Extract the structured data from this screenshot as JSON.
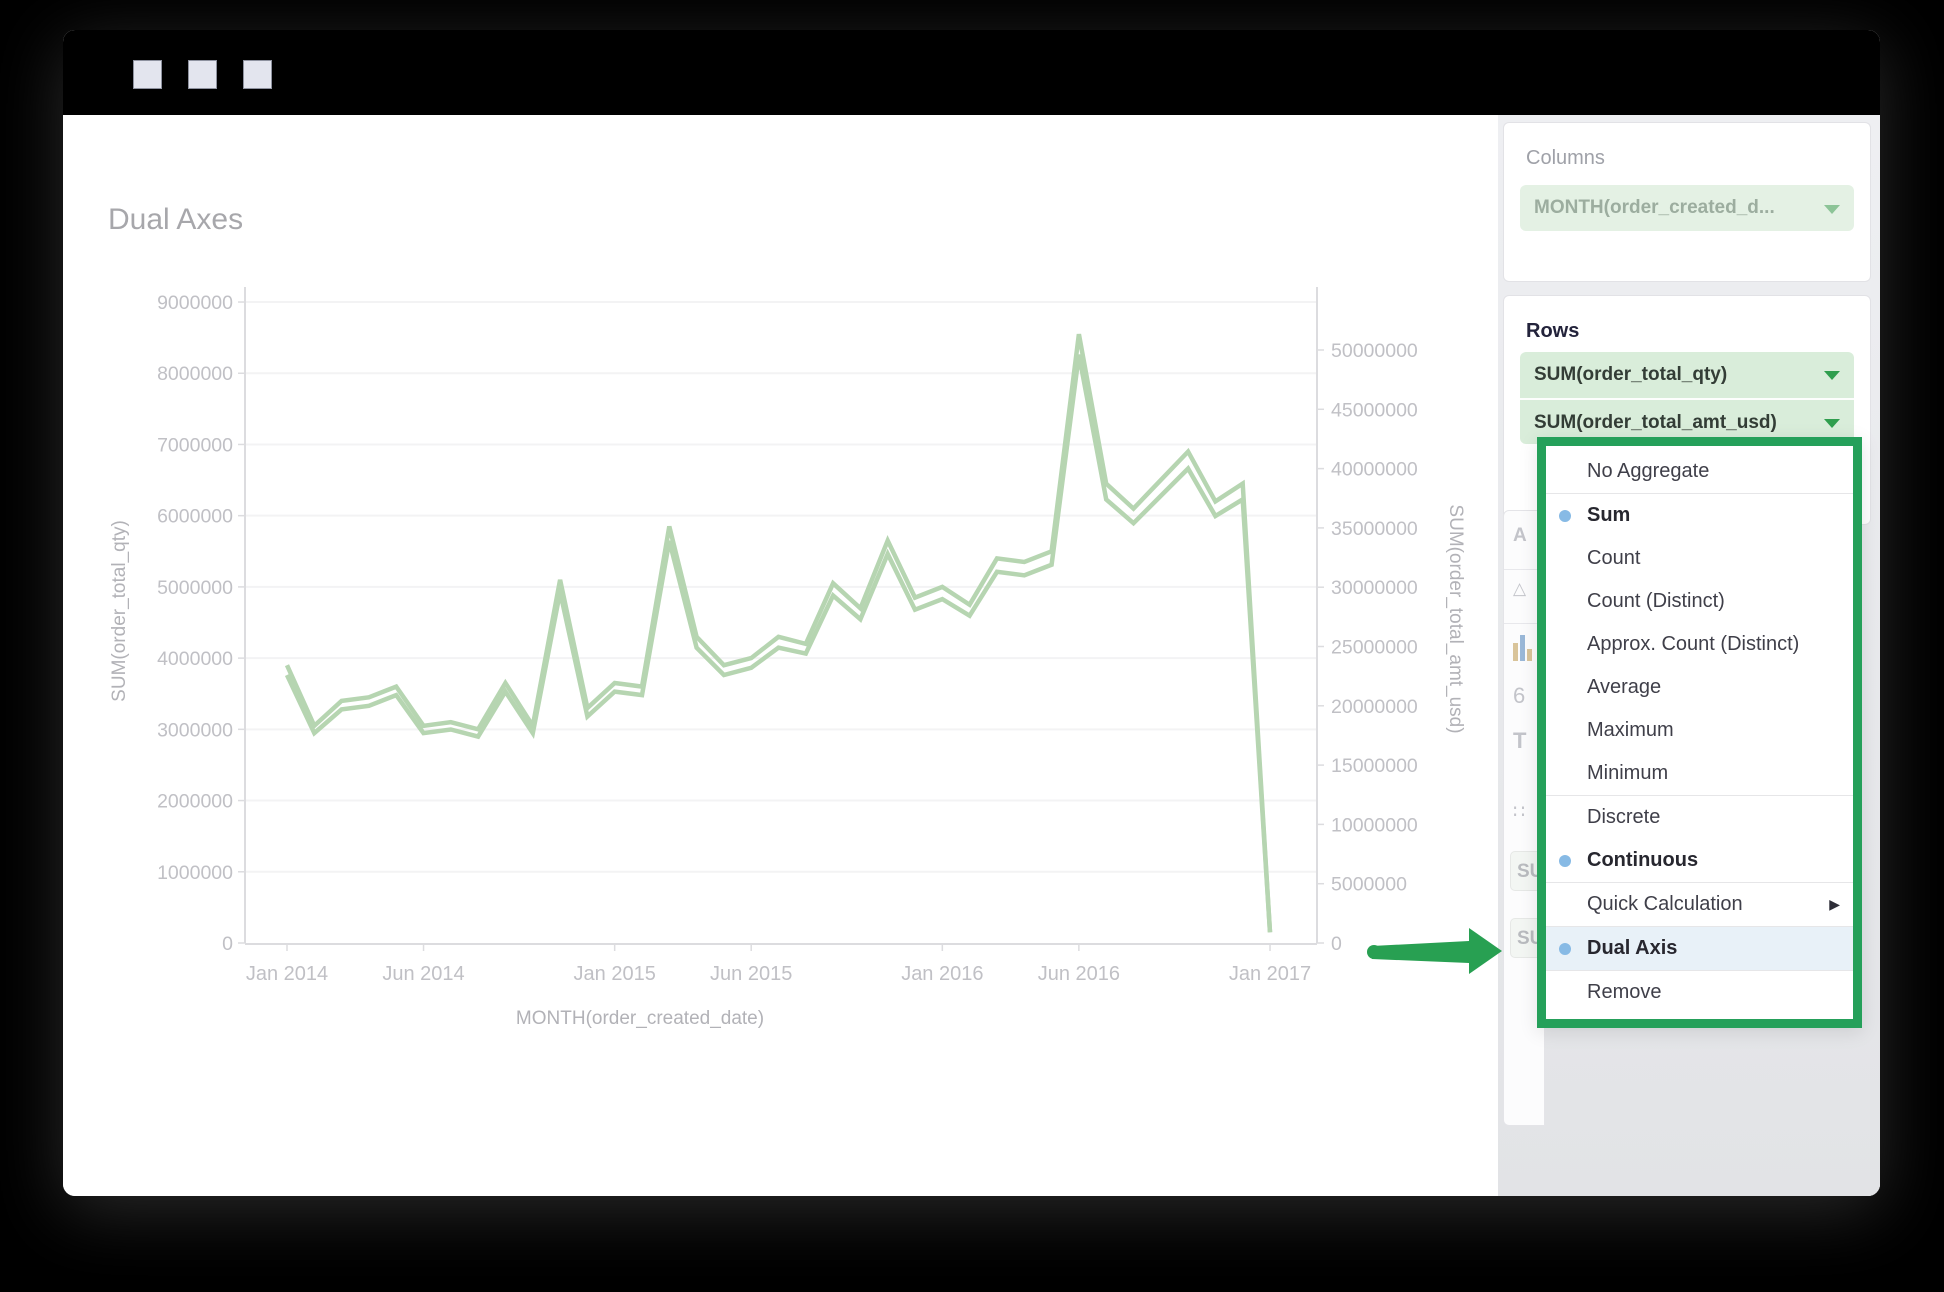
{
  "titlebar": {
    "buttons": [
      "window-button",
      "window-button",
      "window-button"
    ]
  },
  "chart": {
    "title": "Dual Axes",
    "x_axis_title": "MONTH(order_created_date)",
    "y_left_axis_title": "SUM(order_total_qty)",
    "y_right_axis_title": "SUM(order_total_amt_usd)",
    "y_left_labels": [
      "9000000",
      "8000000",
      "7000000",
      "6000000",
      "5000000",
      "4000000",
      "3000000",
      "2000000",
      "1000000",
      "0"
    ],
    "y_right_labels": [
      "50000000",
      "45000000",
      "40000000",
      "35000000",
      "30000000",
      "25000000",
      "20000000",
      "15000000",
      "10000000",
      "5000000",
      "0"
    ],
    "x_ticks": [
      {
        "label": "Jan 2014",
        "i": 0
      },
      {
        "label": "Jun 2014",
        "i": 5
      },
      {
        "label": "Jan 2015",
        "i": 12
      },
      {
        "label": "Jun 2015",
        "i": 17
      },
      {
        "label": "Jan 2016",
        "i": 24
      },
      {
        "label": "Jun 2016",
        "i": 29
      },
      {
        "label": "Jan 2017",
        "i": 36
      }
    ]
  },
  "chart_data": {
    "type": "line",
    "title": "Dual Axes",
    "xlabel": "MONTH(order_created_date)",
    "x": [
      "Jan 2014",
      "Feb 2014",
      "Mar 2014",
      "Apr 2014",
      "May 2014",
      "Jun 2014",
      "Jul 2014",
      "Aug 2014",
      "Sep 2014",
      "Oct 2014",
      "Nov 2014",
      "Dec 2014",
      "Jan 2015",
      "Feb 2015",
      "Mar 2015",
      "Apr 2015",
      "May 2015",
      "Jun 2015",
      "Jul 2015",
      "Aug 2015",
      "Sep 2015",
      "Oct 2015",
      "Nov 2015",
      "Dec 2015",
      "Jan 2016",
      "Feb 2016",
      "Mar 2016",
      "Apr 2016",
      "May 2016",
      "Jun 2016",
      "Jul 2016",
      "Aug 2016",
      "Sep 2016",
      "Oct 2016",
      "Nov 2016",
      "Dec 2016",
      "Jan 2017"
    ],
    "series": [
      {
        "name": "SUM(order_total_qty)",
        "axis": "left",
        "values": [
          3900000,
          3050000,
          3400000,
          3450000,
          3600000,
          3050000,
          3100000,
          3000000,
          3650000,
          3050000,
          5100000,
          3300000,
          3650000,
          3600000,
          5850000,
          4300000,
          3900000,
          4000000,
          4300000,
          4200000,
          5050000,
          4700000,
          5650000,
          4850000,
          5000000,
          4750000,
          5400000,
          5350000,
          5500000,
          8550000,
          6450000,
          6100000,
          6500000,
          6900000,
          6200000,
          6450000,
          150000
        ]
      },
      {
        "name": "SUM(order_total_amt_usd)",
        "axis": "right",
        "values": [
          22600000,
          17700000,
          19700000,
          20000000,
          20900000,
          17700000,
          18000000,
          17400000,
          21200000,
          17700000,
          29600000,
          19100000,
          21200000,
          20900000,
          33900000,
          24900000,
          22600000,
          23200000,
          24900000,
          24400000,
          29300000,
          27300000,
          32800000,
          28100000,
          29000000,
          27600000,
          31300000,
          31000000,
          31900000,
          49600000,
          37400000,
          35400000,
          37700000,
          40000000,
          36000000,
          37400000,
          900000
        ]
      }
    ],
    "y_left_range": [
      0,
      9000000
    ],
    "y_left_step": 1000000,
    "y_right_range": [
      0,
      50000000
    ],
    "y_right_step": 5000000,
    "grid": "horizontal",
    "legend": "none",
    "line_color": "#b6d5b1"
  },
  "panel": {
    "columns": {
      "label": "Columns",
      "pill": "MONTH(order_created_d..."
    },
    "rows": {
      "label": "Rows",
      "pills": [
        "SUM(order_total_qty)",
        "SUM(order_total_amt_usd)"
      ]
    },
    "ghost_items": {
      "a_label": "A",
      "su_label_1": "SU",
      "su_label_2": "SU"
    }
  },
  "menu": {
    "items": [
      {
        "label": "No Aggregate",
        "sep_after": true
      },
      {
        "label": "Sum",
        "bold": true,
        "dot": true
      },
      {
        "label": "Count"
      },
      {
        "label": "Count (Distinct)"
      },
      {
        "label": "Approx. Count (Distinct)"
      },
      {
        "label": "Average"
      },
      {
        "label": "Maximum"
      },
      {
        "label": "Minimum",
        "sep_after": true
      },
      {
        "label": "Discrete"
      },
      {
        "label": "Continuous",
        "bold": true,
        "dot": true,
        "sep_after": true
      },
      {
        "label": "Quick Calculation",
        "submenu": true,
        "sep_after": true
      },
      {
        "label": "Dual Axis",
        "bold": true,
        "dot": true,
        "highlight": true,
        "sep_after": true
      },
      {
        "label": "Remove"
      }
    ],
    "border_color": "#25a05a",
    "dot_color": "#87bae5",
    "highlight_color": "#e8f1f8"
  },
  "arrow": {
    "color": "#28a052",
    "points_to": "Dual Axis"
  }
}
